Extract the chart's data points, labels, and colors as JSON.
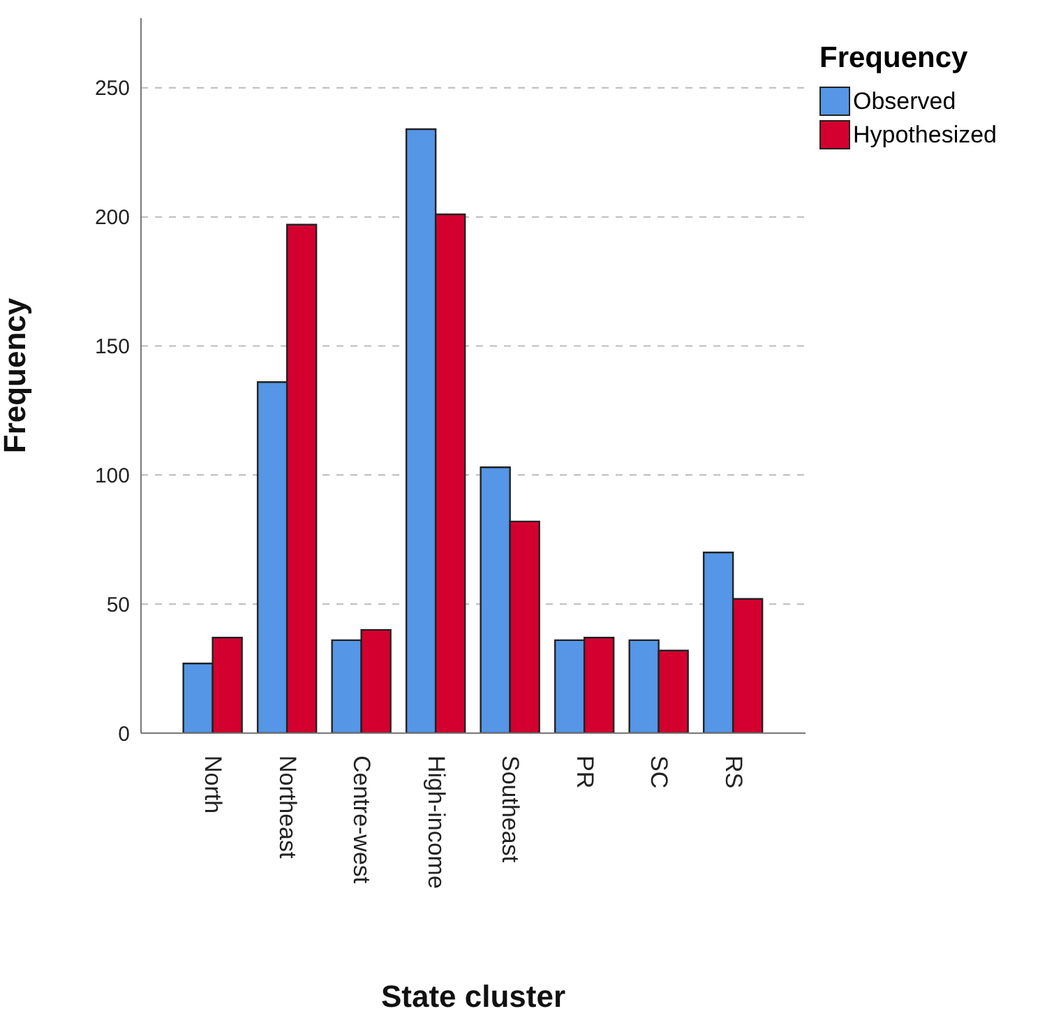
{
  "chart_data": {
    "type": "bar",
    "categories": [
      "North",
      "Northeast",
      "Centre-west",
      "High-income",
      "Southeast",
      "PR",
      "SC",
      "RS"
    ],
    "series": [
      {
        "name": "Observed",
        "color": "#5596e6",
        "values": [
          27,
          136,
          36,
          234,
          103,
          36,
          36,
          70
        ]
      },
      {
        "name": "Hypothesized",
        "color": "#d3002f",
        "values": [
          37,
          197,
          40,
          201,
          82,
          37,
          32,
          52
        ]
      }
    ],
    "xlabel": "State cluster",
    "ylabel": "Frequency",
    "legend_title": "Frequency",
    "ylim": [
      0,
      277
    ],
    "yticks": [
      0,
      50,
      100,
      150,
      200,
      250
    ],
    "grid": "y",
    "legend": "top right"
  }
}
